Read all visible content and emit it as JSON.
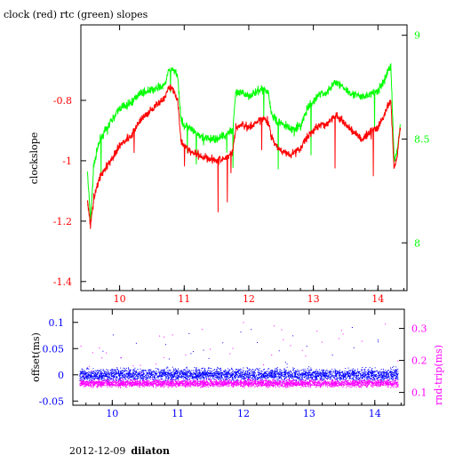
{
  "chart_data": [
    {
      "type": "line",
      "title": "clock (red) rtc (green) slopes",
      "ylabel": "clockslope",
      "xlim": [
        9.4,
        14.45
      ],
      "ylim": [
        -1.43,
        -0.55
      ],
      "y2lim": [
        7.77,
        9.05
      ],
      "x_ticks": [
        "10",
        "11",
        "12",
        "13",
        "14"
      ],
      "y_ticks": [
        "-0.8",
        "-1",
        "-1.2",
        "-1.4"
      ],
      "y2_ticks": [
        "9",
        "8.5",
        "8"
      ],
      "colors": {
        "clock": "#ff0000",
        "rtc": "#00ff00",
        "left_axis": "#ff0000",
        "right_axis": "#00ff00"
      },
      "series": [
        {
          "name": "clock",
          "axis": "left",
          "x": [
            9.5,
            9.55,
            9.6,
            9.7,
            9.8,
            9.9,
            9.95,
            10.0,
            10.1,
            10.2,
            10.3,
            10.45,
            10.55,
            10.7,
            10.75,
            10.82,
            10.9,
            10.95,
            11.0,
            11.1,
            11.2,
            11.35,
            11.5,
            11.65,
            11.75,
            11.8,
            11.9,
            12.0,
            12.1,
            12.2,
            12.3,
            12.35,
            12.45,
            12.55,
            12.65,
            12.8,
            12.9,
            13.0,
            13.1,
            13.2,
            13.35,
            13.45,
            13.6,
            13.75,
            13.9,
            14.0,
            14.1,
            14.15,
            14.2,
            14.25,
            14.3,
            14.35
          ],
          "y": [
            -1.13,
            -1.22,
            -1.12,
            -1.05,
            -1.02,
            -0.99,
            -0.97,
            -0.95,
            -0.93,
            -0.91,
            -0.87,
            -0.84,
            -0.82,
            -0.79,
            -0.76,
            -0.76,
            -0.8,
            -0.93,
            -0.95,
            -0.97,
            -0.98,
            -0.99,
            -1.0,
            -0.99,
            -0.97,
            -0.89,
            -0.88,
            -0.89,
            -0.88,
            -0.86,
            -0.87,
            -0.92,
            -0.96,
            -0.97,
            -0.98,
            -0.96,
            -0.92,
            -0.9,
            -0.88,
            -0.88,
            -0.85,
            -0.87,
            -0.9,
            -0.93,
            -0.9,
            -0.89,
            -0.85,
            -0.82,
            -0.8,
            -1.03,
            -0.98,
            -0.88
          ]
        },
        {
          "name": "rtc",
          "axis": "right",
          "x": [
            9.5,
            9.55,
            9.6,
            9.7,
            9.8,
            9.9,
            9.95,
            10.0,
            10.1,
            10.2,
            10.3,
            10.45,
            10.55,
            10.7,
            10.75,
            10.82,
            10.9,
            10.95,
            11.0,
            11.1,
            11.2,
            11.35,
            11.5,
            11.65,
            11.75,
            11.8,
            11.9,
            12.0,
            12.1,
            12.2,
            12.3,
            12.35,
            12.45,
            12.55,
            12.65,
            12.8,
            12.9,
            13.0,
            13.1,
            13.2,
            13.35,
            13.45,
            13.6,
            13.75,
            13.9,
            14.0,
            14.1,
            14.15,
            14.2,
            14.25,
            14.3,
            14.35
          ],
          "y": [
            8.35,
            8.1,
            8.38,
            8.5,
            8.55,
            8.6,
            8.62,
            8.65,
            8.66,
            8.68,
            8.72,
            8.73,
            8.74,
            8.76,
            8.82,
            8.84,
            8.8,
            8.6,
            8.56,
            8.55,
            8.52,
            8.5,
            8.5,
            8.52,
            8.55,
            8.72,
            8.72,
            8.71,
            8.72,
            8.74,
            8.73,
            8.62,
            8.58,
            8.57,
            8.55,
            8.56,
            8.64,
            8.68,
            8.72,
            8.72,
            8.78,
            8.75,
            8.72,
            8.7,
            8.72,
            8.73,
            8.78,
            8.83,
            8.85,
            8.4,
            8.45,
            8.58
          ]
        }
      ]
    },
    {
      "type": "scatter",
      "ylabel": "offset(ms)",
      "y2label": "rnd-trip(ms)",
      "xlim": [
        9.4,
        14.45
      ],
      "ylim": [
        -0.058,
        0.125
      ],
      "y2lim": [
        0.06,
        0.36
      ],
      "x_ticks": [
        "10",
        "11",
        "12",
        "13",
        "14"
      ],
      "y_ticks": [
        "0.1",
        "0.05",
        "0",
        "-0.05"
      ],
      "y2_ticks": [
        "0.3",
        "0.2",
        "0.1"
      ],
      "colors": {
        "offset": "#0000ff",
        "rnd_trip": "#ff00ff",
        "left_axis": "#0000ff",
        "right_axis": "#ff00ff"
      },
      "series": [
        {
          "name": "offset",
          "axis": "left",
          "x_range": [
            9.5,
            14.35
          ],
          "center": 0.0,
          "spread": 0.017
        },
        {
          "name": "rnd-trip",
          "axis": "right",
          "x_range": [
            9.5,
            14.35
          ],
          "center": 0.128,
          "spread": 0.015
        }
      ]
    }
  ],
  "footer": {
    "date": "2012-12-09",
    "host": "dilaton"
  }
}
